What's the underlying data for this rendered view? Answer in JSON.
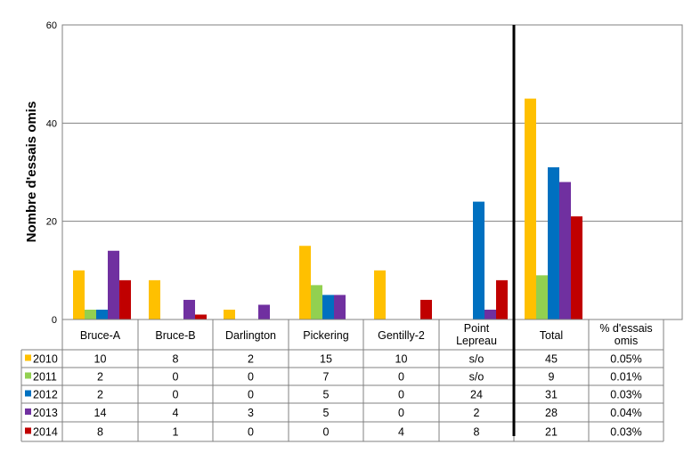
{
  "chart_data": {
    "type": "bar",
    "title": "",
    "xlabel": "",
    "ylabel": "Nombre d'essais omis",
    "ylim": [
      0,
      60
    ],
    "yticks": [
      0,
      20,
      40,
      60
    ],
    "grid": true,
    "legend": "table-left",
    "categories": [
      "Bruce-A",
      "Bruce-B",
      "Darlington",
      "Pickering",
      "Gentilly-2",
      "Point Lepreau",
      "Total"
    ],
    "extra_column": "% d'essais omis",
    "series": [
      {
        "name": "2010",
        "color": "#ffc000",
        "values": [
          10,
          8,
          2,
          15,
          10,
          null,
          45
        ],
        "labels": [
          "10",
          "8",
          "2",
          "15",
          "10",
          "s/o",
          "45"
        ],
        "percent": "0.05%"
      },
      {
        "name": "2011",
        "color": "#92d050",
        "values": [
          2,
          0,
          0,
          7,
          0,
          null,
          9
        ],
        "labels": [
          "2",
          "0",
          "0",
          "7",
          "0",
          "s/o",
          "9"
        ],
        "percent": "0.01%"
      },
      {
        "name": "2012",
        "color": "#0070c0",
        "values": [
          2,
          0,
          0,
          5,
          0,
          24,
          31
        ],
        "labels": [
          "2",
          "0",
          "0",
          "5",
          "0",
          "24",
          "31"
        ],
        "percent": "0.03%"
      },
      {
        "name": "2013",
        "color": "#7030a0",
        "values": [
          14,
          4,
          3,
          5,
          0,
          2,
          28
        ],
        "labels": [
          "14",
          "4",
          "3",
          "5",
          "0",
          "2",
          "28"
        ],
        "percent": "0.04%"
      },
      {
        "name": "2014",
        "color": "#c00000",
        "values": [
          8,
          1,
          0,
          0,
          4,
          8,
          21
        ],
        "labels": [
          "8",
          "1",
          "0",
          "0",
          "4",
          "8",
          "21"
        ],
        "percent": "0.03%"
      }
    ]
  }
}
